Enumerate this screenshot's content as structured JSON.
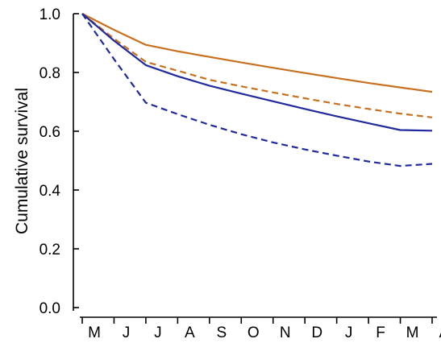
{
  "chart_data": {
    "type": "line",
    "title": "",
    "xlabel": "",
    "ylabel": "Cumulative survival",
    "categories": [
      "M",
      "J",
      "J",
      "A",
      "S",
      "O",
      "N",
      "D",
      "J",
      "F",
      "M",
      "A"
    ],
    "ylim": [
      0,
      1
    ],
    "yticks": [
      "0.0",
      "0.2",
      "0.4",
      "0.6",
      "0.8",
      "1.0"
    ],
    "yticks_values": [
      0,
      0.2,
      0.4,
      0.6,
      0.8,
      1.0
    ],
    "grid": false,
    "legend": "none",
    "series": [
      {
        "color": "#c8701e",
        "dash": "solid",
        "values": [
          1.0,
          0.945,
          0.894,
          0.872,
          0.853,
          0.834,
          0.816,
          0.798,
          0.781,
          0.764,
          0.749,
          0.734
        ]
      },
      {
        "color": "#c8701e",
        "dash": "dashed",
        "values": [
          1.0,
          0.915,
          0.836,
          0.806,
          0.775,
          0.753,
          0.732,
          0.712,
          0.693,
          0.676,
          0.66,
          0.647
        ]
      },
      {
        "color": "#1f2a9c",
        "dash": "solid",
        "values": [
          1.0,
          0.908,
          0.825,
          0.787,
          0.755,
          0.728,
          0.702,
          0.676,
          0.651,
          0.627,
          0.604,
          0.602
        ]
      },
      {
        "color": "#1f2a9c",
        "dash": "dashed",
        "values": [
          1.0,
          0.845,
          0.697,
          0.658,
          0.622,
          0.59,
          0.562,
          0.538,
          0.517,
          0.497,
          0.482,
          0.489
        ]
      }
    ]
  }
}
